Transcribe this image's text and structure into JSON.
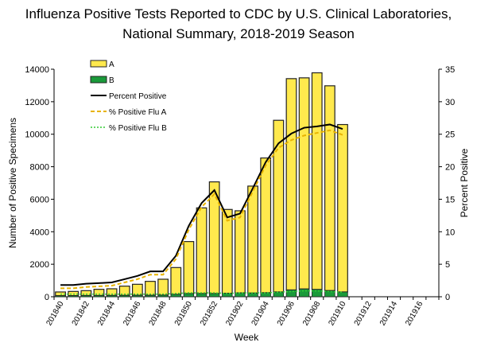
{
  "chart_data": {
    "type": "bar",
    "title_line1": "Influenza Positive Tests Reported to CDC by U.S. Clinical Laboratories,",
    "title_line2": "National Summary, 2018-2019 Season",
    "xlabel": "Week",
    "ylabel": "Number of Positive Specimens",
    "y2label": "Percent Positive",
    "ylim": [
      0,
      14000
    ],
    "y2lim": [
      0,
      35
    ],
    "yticks": [
      0,
      2000,
      4000,
      6000,
      8000,
      10000,
      12000,
      14000
    ],
    "y2ticks": [
      0,
      5,
      10,
      15,
      20,
      25,
      30,
      35
    ],
    "categories": [
      "201840",
      "201841",
      "201842",
      "201843",
      "201844",
      "201845",
      "201846",
      "201847",
      "201848",
      "201849",
      "201850",
      "201851",
      "201852",
      "201901",
      "201902",
      "201903",
      "201904",
      "201905",
      "201906",
      "201907",
      "201908",
      "201909",
      "201910",
      "201911",
      "201912",
      "201913",
      "201914",
      "201915",
      "201916",
      "201917"
    ],
    "xtick_labels": [
      "201840",
      "201842",
      "201844",
      "201846",
      "201848",
      "201850",
      "201852",
      "201902",
      "201904",
      "201906",
      "201908",
      "201910",
      "201912",
      "201914",
      "201916"
    ],
    "legend_position": "top-left",
    "grid": false,
    "series": [
      {
        "name": "A",
        "kind": "stacked-bar",
        "color": "#ffe94d",
        "values": [
          230,
          260,
          300,
          380,
          410,
          570,
          680,
          860,
          980,
          1650,
          3200,
          5270,
          6870,
          5160,
          5050,
          6580,
          8290,
          10560,
          13000,
          12990,
          13330,
          12600,
          10300,
          null,
          null,
          null,
          null,
          null,
          null,
          null
        ]
      },
      {
        "name": "B",
        "kind": "stacked-bar",
        "color": "#1a9a3a",
        "values": [
          64,
          67,
          75,
          77,
          80,
          83,
          87,
          87,
          98,
          146,
          196,
          199,
          199,
          211,
          240,
          228,
          249,
          297,
          420,
          479,
          449,
          380,
          296,
          null,
          null,
          null,
          null,
          null,
          null,
          null
        ]
      },
      {
        "name": "Percent Positive",
        "kind": "line",
        "axis": "right",
        "color": "#000000",
        "values": [
          1.8,
          1.8,
          2.0,
          2.1,
          2.2,
          2.7,
          3.2,
          3.9,
          3.9,
          6.3,
          10.9,
          14.4,
          16.4,
          12.2,
          12.8,
          16.7,
          20.7,
          23.6,
          25.1,
          26.0,
          26.2,
          26.5,
          25.8,
          null,
          null,
          null,
          null,
          null,
          null,
          null
        ]
      },
      {
        "name": "% Positive Flu A",
        "kind": "line",
        "axis": "right",
        "color": "#e8b400",
        "values": [
          1.3,
          1.3,
          1.5,
          1.6,
          1.7,
          2.2,
          2.7,
          3.4,
          3.4,
          5.8,
          10.3,
          13.8,
          15.8,
          11.7,
          12.2,
          16.2,
          20.2,
          22.9,
          24.1,
          24.8,
          25.2,
          25.6,
          24.9,
          null,
          null,
          null,
          null,
          null,
          null,
          null
        ]
      },
      {
        "name": "% Positive Flu B",
        "kind": "line",
        "axis": "right",
        "color": "#33cc33",
        "values": [
          0.4,
          0.4,
          0.4,
          0.4,
          0.4,
          0.4,
          0.4,
          0.4,
          0.4,
          0.5,
          0.6,
          0.6,
          0.6,
          0.5,
          0.6,
          0.6,
          0.6,
          0.7,
          0.8,
          0.9,
          0.9,
          0.8,
          0.7,
          null,
          null,
          null,
          null,
          null,
          null,
          null
        ]
      }
    ]
  }
}
